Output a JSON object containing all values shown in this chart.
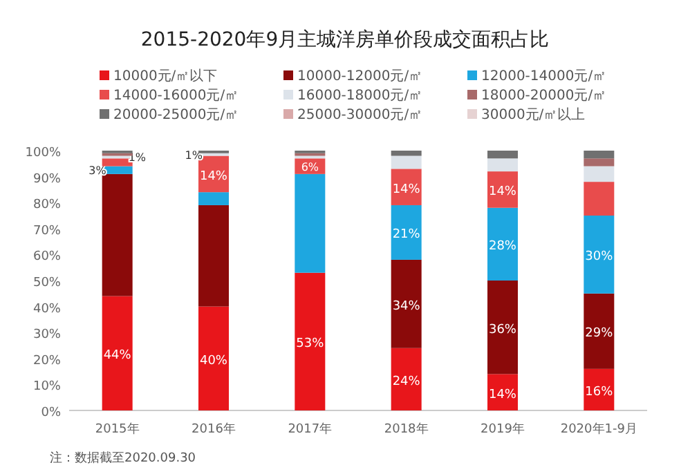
{
  "chart_data": {
    "type": "bar",
    "stacked": true,
    "title": "2015-2020年9月主城洋房单价段成交面积占比",
    "legend": "top",
    "categories": [
      "2015年",
      "2016年",
      "2017年",
      "2018年",
      "2019年",
      "2020年1-9月"
    ],
    "ylim": [
      0,
      100
    ],
    "yticks": [
      {
        "value": 0,
        "label": "0%"
      },
      {
        "value": 10,
        "label": "10%"
      },
      {
        "value": 20,
        "label": "20%"
      },
      {
        "value": 30,
        "label": "30%"
      },
      {
        "value": 40,
        "label": "40%"
      },
      {
        "value": 50,
        "label": "50%"
      },
      {
        "value": 60,
        "label": "60%"
      },
      {
        "value": 70,
        "label": "70%"
      },
      {
        "value": 80,
        "label": "80%"
      },
      {
        "value": 90,
        "label": "90%"
      },
      {
        "value": 100,
        "label": "100%"
      }
    ],
    "series": [
      {
        "name": "10000元/㎡以下",
        "color": "#e8161b",
        "values": [
          44,
          40,
          53,
          24,
          14,
          16
        ],
        "value_labels": [
          "44%",
          "40%",
          "53%",
          "24%",
          "14%",
          "16%"
        ]
      },
      {
        "name": "10000-12000元/㎡",
        "color": "#8b0a0a",
        "values": [
          47,
          39,
          0,
          34,
          36,
          29
        ],
        "value_labels": [
          null,
          null,
          null,
          "34%",
          "36%",
          "29%"
        ]
      },
      {
        "name": "12000-14000元/㎡",
        "color": "#1ea7e0",
        "values": [
          3,
          5,
          38,
          21,
          28,
          30
        ],
        "value_labels": [
          "3%",
          null,
          null,
          "21%",
          "28%",
          "30%"
        ]
      },
      {
        "name": "14000-16000元/㎡",
        "color": "#e84c4c",
        "values": [
          3,
          14,
          6,
          14,
          14,
          13
        ],
        "value_labels": [
          null,
          "14%",
          "6%",
          "14%",
          "14%",
          null
        ]
      },
      {
        "name": "16000-18000元/㎡",
        "color": "#dde3ea",
        "values": [
          1,
          1,
          1,
          5,
          5,
          6
        ],
        "value_labels": [
          "1%",
          "1%",
          null,
          null,
          null,
          null
        ]
      },
      {
        "name": "18000-20000元/㎡",
        "color": "#a86a6a",
        "values": [
          1,
          0,
          1,
          0,
          0,
          3
        ],
        "value_labels": [
          null,
          null,
          null,
          null,
          null,
          null
        ]
      },
      {
        "name": "20000-25000元/㎡",
        "color": "#707070",
        "values": [
          1,
          1,
          1,
          2,
          3,
          3
        ],
        "value_labels": [
          null,
          null,
          null,
          null,
          null,
          null
        ]
      },
      {
        "name": "25000-30000元/㎡",
        "color": "#d9a9a9",
        "values": [
          0,
          0,
          0,
          0,
          0,
          0
        ],
        "value_labels": [
          null,
          null,
          null,
          null,
          null,
          null
        ]
      },
      {
        "name": "30000元/㎡以上",
        "color": "#e6d2d2",
        "values": [
          0,
          0,
          0,
          0,
          0,
          0
        ],
        "value_labels": [
          null,
          null,
          null,
          null,
          null,
          null
        ]
      }
    ],
    "annotations": [
      "注：数据截至2020.09.30"
    ]
  }
}
